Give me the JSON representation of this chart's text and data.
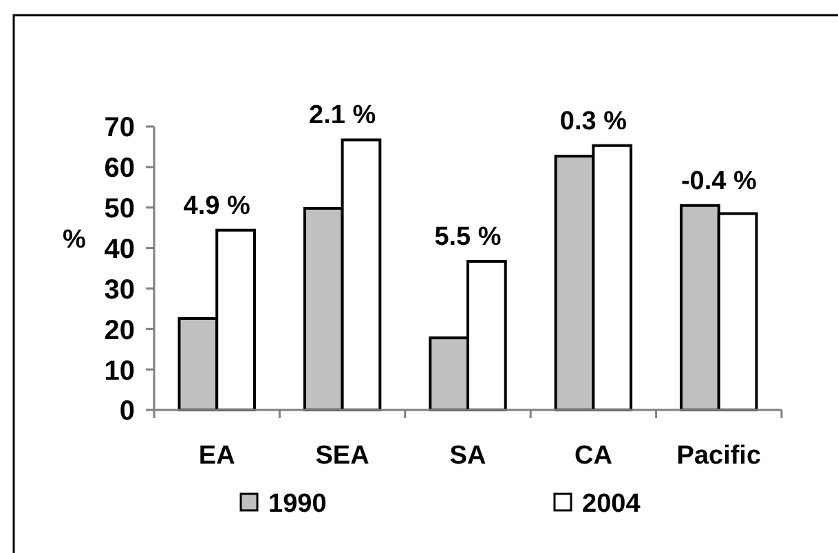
{
  "chart_data": {
    "type": "bar",
    "ylabel": "%",
    "categories": [
      "EA",
      "SEA",
      "SA",
      "CA",
      "Pacific"
    ],
    "series": [
      {
        "name": "1990",
        "color": "#c0c0c0",
        "values": [
          22.6,
          49.8,
          17.8,
          62.7,
          50.5
        ]
      },
      {
        "name": "2004",
        "color": "#ffffff",
        "values": [
          44.4,
          66.7,
          36.7,
          65.3,
          48.5
        ]
      }
    ],
    "ylim": [
      0,
      70
    ],
    "yticks": [
      0,
      10,
      20,
      30,
      40,
      50,
      60,
      70
    ],
    "legend": "bottom",
    "annotations": [
      {
        "text": "4.9 %",
        "x": "EA",
        "y": 44.4
      },
      {
        "text": "2.1 %",
        "x": "SEA",
        "y": 66.7
      },
      {
        "text": "5.5 %",
        "x": "SA",
        "y": 36.7
      },
      {
        "text": "0.3 %",
        "x": "CA",
        "y": 65.3
      },
      {
        "text": "-0.4 %",
        "x": "Pacific",
        "y": 50.5
      }
    ]
  }
}
